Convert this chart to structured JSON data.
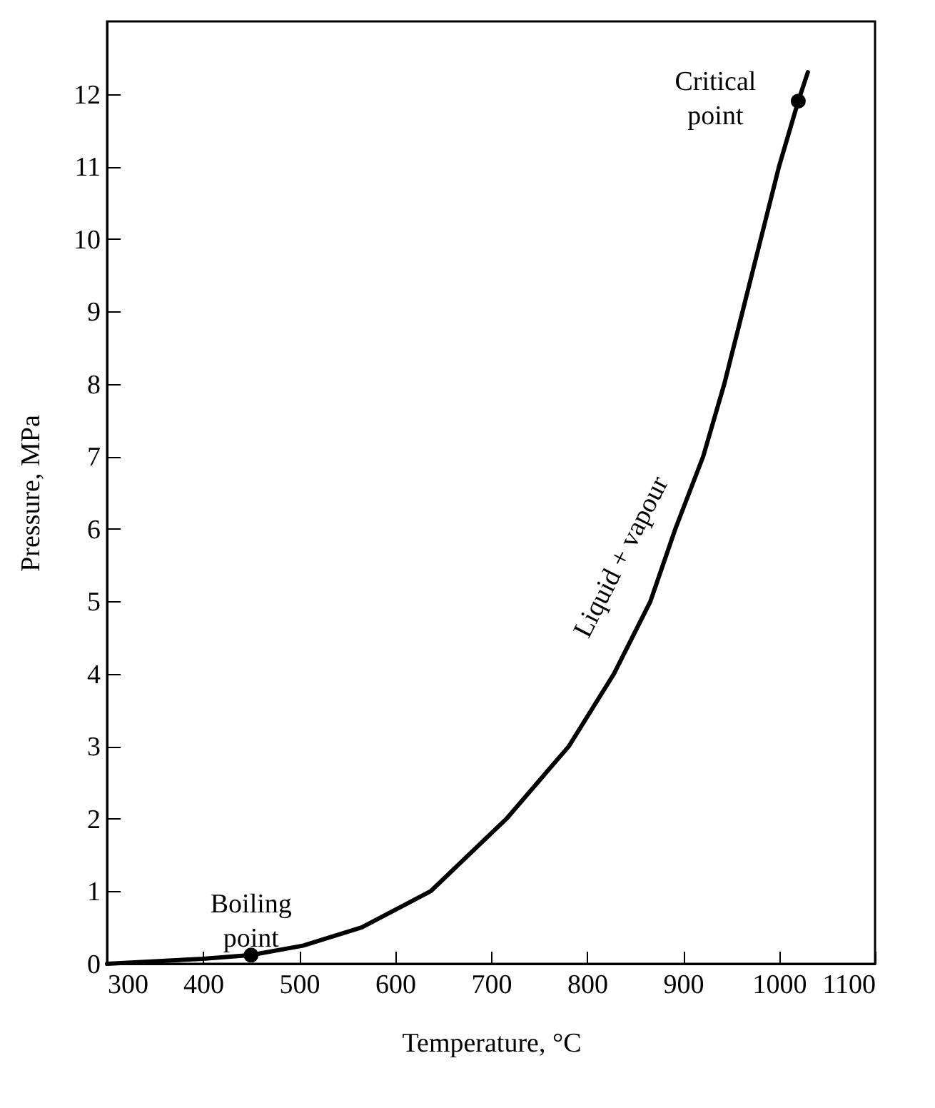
{
  "chart_data": {
    "type": "line",
    "xlabel": "Temperature, °C",
    "ylabel": "Pressure, MPa",
    "xlim": [
      300,
      1100
    ],
    "ylim": [
      0,
      13
    ],
    "xticks": [
      300,
      400,
      500,
      600,
      700,
      800,
      900,
      1000,
      1100
    ],
    "yticks": [
      0,
      1,
      2,
      3,
      4,
      5,
      6,
      7,
      8,
      9,
      10,
      11,
      12
    ],
    "grid": false,
    "line_style": "solid",
    "series": [
      {
        "color": "#000000",
        "marker": "none",
        "x": [
          300,
          400,
          450,
          504,
          565,
          637,
          716,
          781,
          828,
          866,
          892,
          921,
          943,
          962,
          981,
          1000,
          1020,
          1030
        ],
        "values": [
          0,
          0.07,
          0.12,
          0.25,
          0.5,
          1,
          2,
          3,
          4,
          5,
          6,
          7,
          8,
          9,
          10,
          11,
          11.9,
          12.3
        ]
      },
      {
        "type": "scatter",
        "color": "#000000",
        "marker": "circle",
        "x": [
          450,
          1020
        ],
        "values": [
          0.12,
          11.9
        ]
      }
    ],
    "annotations": [
      {
        "text": "Boiling\npoint",
        "x": 450,
        "y": 0.12
      },
      {
        "text": "Critical\npoint",
        "x": 1020,
        "y": 11.9
      },
      "Liquid + vapour"
    ]
  }
}
